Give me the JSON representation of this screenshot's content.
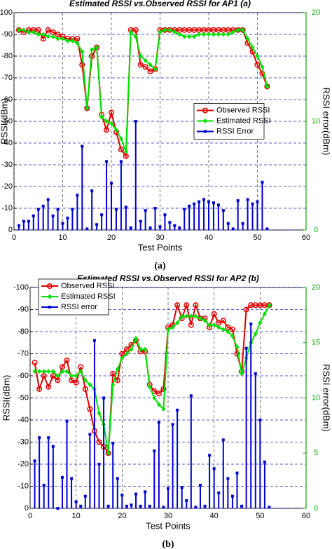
{
  "chart_data": [
    {
      "type": "line",
      "title": "Estimated RSSI vs.Observed RSSI for AP1  (a)",
      "panel_label": "(a)",
      "x_label": "Test Points",
      "y_label": "RSSI(dBm)",
      "y2_label": "RSSI error(dBm)",
      "x": [
        1,
        2,
        3,
        4,
        5,
        6,
        7,
        8,
        9,
        10,
        11,
        12,
        13,
        14,
        15,
        16,
        17,
        18,
        19,
        20,
        21,
        22,
        23,
        24,
        25,
        26,
        27,
        28,
        29,
        30,
        31,
        32,
        33,
        34,
        35,
        36,
        37,
        38,
        39,
        40,
        41,
        42,
        43,
        44,
        45,
        46,
        47,
        48,
        49,
        50,
        51,
        52
      ],
      "xlim": [
        0,
        60
      ],
      "xticks": [
        0,
        10,
        20,
        30,
        40,
        50,
        60
      ],
      "ylim": [
        0,
        -100
      ],
      "yticks": [
        0,
        -10,
        -20,
        -30,
        -40,
        -50,
        -60,
        -70,
        -80,
        -90,
        -100
      ],
      "y2lim": [
        0,
        20
      ],
      "y2ticks": [
        0,
        10,
        20
      ],
      "grid": true,
      "legend": "center right",
      "series": [
        {
          "name": "Observed RSSI",
          "color": "#e00000",
          "marker": "circle",
          "values": [
            -92,
            -91,
            -92,
            -92,
            -92,
            -88,
            -92,
            -91,
            -90,
            -89,
            -88,
            -88,
            -88,
            -76,
            -56,
            -80,
            -84,
            -53,
            -46,
            -54,
            -45,
            -37,
            -34,
            -92,
            -92,
            -76,
            -75,
            -73,
            -74,
            -92,
            -92,
            -92,
            -92,
            -92,
            -92,
            -92,
            -92,
            -92,
            -92,
            -92,
            -92,
            -92,
            -92,
            -92,
            -92,
            -92,
            -92,
            -86,
            -82,
            -76,
            -72,
            -66
          ]
        },
        {
          "name": "Estimated RSSI",
          "color": "#00e000",
          "marker": "diamond",
          "values": [
            -92,
            -92,
            -91,
            -91,
            -90,
            -90,
            -89,
            -89,
            -88,
            -88,
            -87,
            -87,
            -86,
            -82,
            -56,
            -83,
            -84,
            -52,
            -50,
            -49,
            -46,
            -42,
            -36,
            -91,
            -89,
            -80,
            -78,
            -76,
            -74,
            -91,
            -92,
            -92,
            -91,
            -90,
            -89,
            -89,
            -89,
            -90,
            -90,
            -90,
            -90,
            -90,
            -90,
            -90,
            -91,
            -92,
            -92,
            -88,
            -84,
            -80,
            -75,
            -66
          ]
        },
        {
          "name": "RSSI Error",
          "color": "#0000d0",
          "marker": "stem",
          "axis": "y2",
          "values": [
            0.4,
            0.8,
            0.8,
            1.3,
            1.9,
            2.2,
            2.8,
            1.3,
            1.9,
            0.6,
            1.1,
            1.9,
            3.2,
            7.7,
            0.1,
            3.6,
            0.5,
            1.4,
            6.3,
            4.3,
            1.9,
            6.3,
            2.1,
            0.2,
            10,
            0.8,
            1.8,
            0.2,
            2,
            0.3,
            1.4,
            0.7,
            0.4,
            0.2,
            1.9,
            2.2,
            2.4,
            2.6,
            2.8,
            2.6,
            2.5,
            2.3,
            1.8,
            0.6,
            0.1,
            2.7,
            0.6,
            2.8,
            2.4,
            2.6,
            4.4,
            0.1
          ]
        }
      ]
    },
    {
      "type": "line",
      "title": "Estimated RSSI vs.Observed RSSI for AP2 (b)",
      "panel_label": "(b)",
      "x_label": "Test Points",
      "y_label": "RSSI(dBm)",
      "y2_label": "RSSI error(dBm)",
      "x": [
        1,
        2,
        3,
        4,
        5,
        6,
        7,
        8,
        9,
        10,
        11,
        12,
        13,
        14,
        15,
        16,
        17,
        18,
        19,
        20,
        21,
        22,
        23,
        24,
        25,
        26,
        27,
        28,
        29,
        30,
        31,
        32,
        33,
        34,
        35,
        36,
        37,
        38,
        39,
        40,
        41,
        42,
        43,
        44,
        45,
        46,
        47,
        48,
        49,
        50,
        51,
        52
      ],
      "xlim": [
        0,
        60
      ],
      "xticks": [
        0,
        10,
        20,
        30,
        40,
        50,
        60
      ],
      "ylim": [
        0,
        -100
      ],
      "yticks": [
        0,
        -10,
        -20,
        -30,
        -40,
        -50,
        -60,
        -70,
        -80,
        -90,
        -100
      ],
      "y2lim": [
        0,
        20
      ],
      "y2ticks": [
        0,
        5,
        10,
        15,
        20
      ],
      "grid": true,
      "legend": "upper left",
      "series": [
        {
          "name": "Observed RSSI",
          "color": "#e00000",
          "marker": "circle",
          "values": [
            -66,
            -54,
            -60,
            -55,
            -60,
            -58,
            -64,
            -67,
            -58,
            -57,
            -64,
            -54,
            -45,
            -35,
            -30,
            -28,
            -25,
            -61,
            -58,
            -70,
            -72,
            -74,
            -76,
            -71,
            -71,
            -56,
            -53,
            -52,
            -54,
            -82,
            -83,
            -92,
            -86,
            -92,
            -83,
            -92,
            -86,
            -86,
            -82,
            -88,
            -84,
            -85,
            -82,
            -81,
            -70,
            -62,
            -90,
            -92,
            -92,
            -92,
            -92,
            -92
          ]
        },
        {
          "name": "Estimated RSSI",
          "color": "#00e000",
          "marker": "diamond",
          "values": [
            -62,
            -62,
            -62,
            -62,
            -62,
            -60,
            -62,
            -62,
            -60,
            -60,
            -62,
            -58,
            -56,
            -54,
            -43,
            -38,
            -25,
            -56,
            -63,
            -68,
            -70,
            -72,
            -77,
            -72,
            -72,
            -55,
            -50,
            -47,
            -45,
            -81,
            -82,
            -84,
            -87,
            -87,
            -87,
            -87,
            -86,
            -85,
            -83,
            -83,
            -82,
            -81,
            -80,
            -78,
            -73,
            -61,
            -68,
            -75,
            -79,
            -84,
            -88,
            -92
          ]
        },
        {
          "name": "RSSI error",
          "color": "#0000d0",
          "marker": "stem",
          "axis": "y2",
          "values": [
            4.3,
            6.4,
            2.1,
            6.4,
            5.6,
            0,
            2.8,
            7.9,
            2.7,
            0.6,
            0.2,
            1.1,
            6.7,
            15.2,
            4,
            10,
            0.2,
            5.9,
            2.7,
            1.2,
            0.2,
            0.3,
            1.3,
            0.2,
            1.5,
            0.2,
            5.2,
            7.8,
            0.1,
            1.8,
            7.6,
            8.9,
            1.9,
            0.7,
            10.2,
            0.1,
            2.1,
            0.2,
            4.8,
            3.6,
            1.4,
            6.2,
            2.7,
            1.1,
            3.2,
            0.2,
            14.5,
            16.7,
            12.2,
            8,
            4.2,
            0.1
          ]
        }
      ]
    }
  ]
}
